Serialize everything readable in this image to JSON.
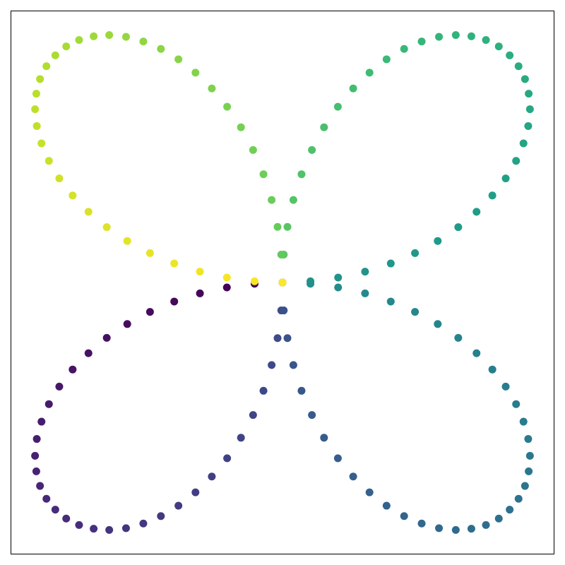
{
  "chart_data": {
    "type": "scatter",
    "x": [
      -0.113,
      -0.225,
      -0.334,
      -0.438,
      -0.536,
      -0.628,
      -0.711,
      -0.785,
      -0.849,
      -0.903,
      -0.945,
      -0.975,
      -0.994,
      -1.001,
      -0.996,
      -0.981,
      -0.955,
      -0.919,
      -0.875,
      -0.823,
      -0.764,
      -0.701,
      -0.633,
      -0.563,
      -0.492,
      -0.421,
      -0.352,
      -0.286,
      -0.224,
      -0.168,
      -0.119,
      -0.077,
      -0.044,
      -0.02,
      -0.005,
      0,
      0.005,
      0.02,
      0.044,
      0.077,
      0.119,
      0.168,
      0.224,
      0.286,
      0.352,
      0.421,
      0.492,
      0.563,
      0.633,
      0.701,
      0.764,
      0.823,
      0.875,
      0.919,
      0.955,
      0.981,
      0.996,
      1.001,
      0.994,
      0.975,
      0.945,
      0.903,
      0.849,
      0.785,
      0.711,
      0.628,
      0.536,
      0.438,
      0.334,
      0.225,
      0.113,
      0,
      0.113,
      0.225,
      0.334,
      0.438,
      0.536,
      0.628,
      0.711,
      0.785,
      0.849,
      0.903,
      0.945,
      0.975,
      0.994,
      1.001,
      0.996,
      0.981,
      0.955,
      0.919,
      0.875,
      0.823,
      0.764,
      0.701,
      0.633,
      0.563,
      0.492,
      0.421,
      0.352,
      0.286,
      0.224,
      0.168,
      0.119,
      0.077,
      0.044,
      0.02,
      0.005,
      0,
      -0.005,
      -0.02,
      -0.044,
      -0.077,
      -0.119,
      -0.168,
      -0.224,
      -0.286,
      -0.352,
      -0.421,
      -0.492,
      -0.563,
      -0.633,
      -0.701,
      -0.764,
      -0.823,
      -0.875,
      -0.919,
      -0.955,
      -0.981,
      -0.996,
      -1.001,
      -0.994,
      -0.975,
      -0.945,
      -0.903,
      -0.849,
      -0.785,
      -0.711,
      -0.628,
      -0.536,
      -0.438,
      -0.334,
      -0.225,
      -0.113,
      0
    ],
    "y": [
      -0.005,
      -0.02,
      -0.044,
      -0.077,
      -0.119,
      -0.168,
      -0.224,
      -0.286,
      -0.352,
      -0.421,
      -0.492,
      -0.563,
      -0.633,
      -0.701,
      -0.764,
      -0.823,
      -0.875,
      -0.919,
      -0.955,
      -0.981,
      -0.996,
      -1.001,
      -0.994,
      -0.975,
      -0.945,
      -0.903,
      -0.849,
      -0.785,
      -0.711,
      -0.628,
      -0.536,
      -0.438,
      -0.334,
      -0.225,
      -0.113,
      0,
      -0.113,
      -0.225,
      -0.334,
      -0.438,
      -0.536,
      -0.628,
      -0.711,
      -0.785,
      -0.849,
      -0.903,
      -0.945,
      -0.975,
      -0.994,
      -1.001,
      -0.996,
      -0.981,
      -0.955,
      -0.919,
      -0.875,
      -0.823,
      -0.764,
      -0.701,
      -0.633,
      -0.563,
      -0.492,
      -0.421,
      -0.352,
      -0.286,
      -0.224,
      -0.168,
      -0.119,
      -0.077,
      -0.044,
      -0.02,
      -0.005,
      0,
      0.005,
      0.02,
      0.044,
      0.077,
      0.119,
      0.168,
      0.224,
      0.286,
      0.352,
      0.421,
      0.492,
      0.563,
      0.633,
      0.701,
      0.764,
      0.823,
      0.875,
      0.919,
      0.955,
      0.981,
      0.996,
      1.001,
      0.994,
      0.975,
      0.945,
      0.903,
      0.849,
      0.785,
      0.711,
      0.628,
      0.536,
      0.438,
      0.334,
      0.225,
      0.113,
      0,
      0.113,
      0.225,
      0.334,
      0.438,
      0.536,
      0.628,
      0.711,
      0.785,
      0.849,
      0.903,
      0.945,
      0.975,
      0.994,
      1.001,
      0.996,
      0.981,
      0.955,
      0.919,
      0.875,
      0.823,
      0.764,
      0.701,
      0.633,
      0.563,
      0.492,
      0.421,
      0.352,
      0.286,
      0.224,
      0.168,
      0.119,
      0.077,
      0.044,
      0.02,
      0.005,
      0
    ],
    "colormap": [
      "#440154",
      "#482878",
      "#3e4989",
      "#31688e",
      "#26828e",
      "#1f9e89",
      "#35b779",
      "#6ece58",
      "#b5de2b",
      "#fde725"
    ],
    "xlim": [
      -1.1,
      1.1
    ],
    "ylim": [
      -1.1,
      1.1
    ],
    "grid": false
  }
}
